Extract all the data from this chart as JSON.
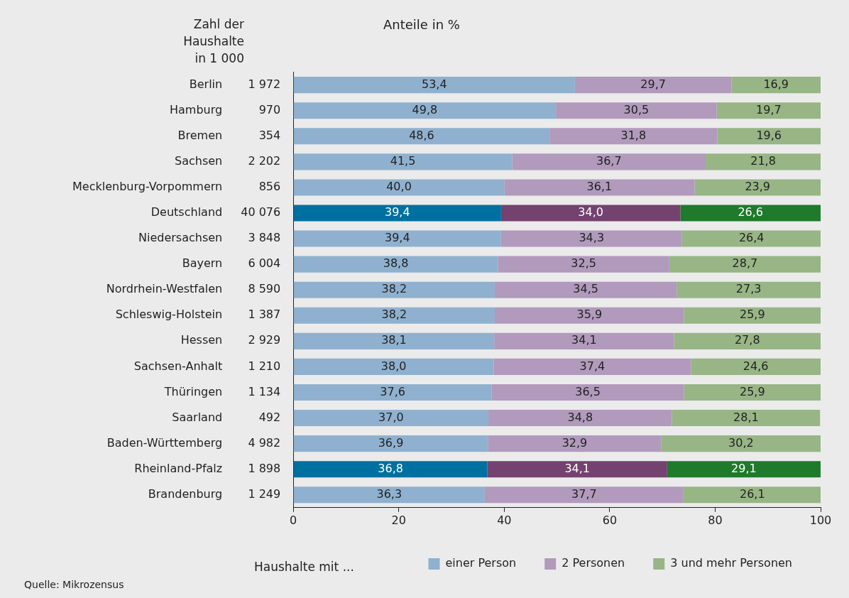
{
  "chart_data": {
    "type": "bar",
    "orientation": "horizontal",
    "stacked": true,
    "title": "Anteile in %",
    "legend_title": "Haushalte mit ...",
    "legend": "bottom",
    "grid": false,
    "categories": [
      "Berlin",
      "Hamburg",
      "Bremen",
      "Sachsen",
      "Mecklenburg-Vorpommern",
      "Deutschland",
      "Niedersachsen",
      "Bayern",
      "Nordrhein-Westfalen",
      "Schleswig-Holstein",
      "Hessen",
      "Sachsen-Anhalt",
      "Thüringen",
      "Saarland",
      "Baden-Württemberg",
      "Rheinland-Pfalz",
      "Brandenburg"
    ],
    "y2_categories": [
      "1 972",
      "970",
      "354",
      "2 202",
      "856",
      "40 076",
      "3 848",
      "6 004",
      "8 590",
      "1 387",
      "2 929",
      "1 210",
      "1 134",
      "492",
      "4 982",
      "1 898",
      "1 249"
    ],
    "xlim": [
      0,
      100
    ],
    "xticks": [
      0,
      20,
      40,
      60,
      80,
      100
    ],
    "series": [
      {
        "name": "einer Person",
        "color": "#8fb1cf",
        "colors": [
          "#8fb1cf",
          "#8fb1cf",
          "#8fb1cf",
          "#8fb1cf",
          "#8fb1cf",
          "#0070a0",
          "#8fb1cf",
          "#8fb1cf",
          "#8fb1cf",
          "#8fb1cf",
          "#8fb1cf",
          "#8fb1cf",
          "#8fb1cf",
          "#8fb1cf",
          "#8fb1cf",
          "#0070a0",
          "#8fb1cf"
        ],
        "values": [
          53.4,
          49.8,
          48.6,
          41.5,
          40.0,
          39.4,
          39.4,
          38.8,
          38.2,
          38.2,
          38.1,
          38.0,
          37.6,
          37.0,
          36.9,
          36.8,
          36.3
        ],
        "value_labels": [
          "53,4",
          "49,8",
          "48,6",
          "41,5",
          "40,0",
          "39,4",
          "39,4",
          "38,8",
          "38,2",
          "38,2",
          "38,1",
          "38,0",
          "37,6",
          "37,0",
          "36,9",
          "36,8",
          "36,3"
        ]
      },
      {
        "name": "2 Personen",
        "color": "#b19abc",
        "colors": [
          "#b19abc",
          "#b19abc",
          "#b19abc",
          "#b19abc",
          "#b19abc",
          "#74426f",
          "#b19abc",
          "#b19abc",
          "#b19abc",
          "#b19abc",
          "#b19abc",
          "#b19abc",
          "#b19abc",
          "#b19abc",
          "#b19abc",
          "#74426f",
          "#b19abc"
        ],
        "values": [
          29.7,
          30.5,
          31.8,
          36.7,
          36.1,
          34.0,
          34.3,
          32.5,
          34.5,
          35.9,
          34.1,
          37.4,
          36.5,
          34.8,
          32.9,
          34.1,
          37.7
        ],
        "value_labels": [
          "29,7",
          "30,5",
          "31,8",
          "36,7",
          "36,1",
          "34,0",
          "34,3",
          "32,5",
          "34,5",
          "35,9",
          "34,1",
          "37,4",
          "36,5",
          "34,8",
          "32,9",
          "34,1",
          "37,7"
        ]
      },
      {
        "name": "3 und mehr Personen",
        "color": "#98b585",
        "colors": [
          "#98b585",
          "#98b585",
          "#98b585",
          "#98b585",
          "#98b585",
          "#1f7a2c",
          "#98b585",
          "#98b585",
          "#98b585",
          "#98b585",
          "#98b585",
          "#98b585",
          "#98b585",
          "#98b585",
          "#98b585",
          "#1f7a2c",
          "#98b585"
        ],
        "values": [
          16.9,
          19.7,
          19.6,
          21.8,
          23.9,
          26.6,
          26.4,
          28.7,
          27.3,
          25.9,
          27.8,
          24.6,
          25.9,
          28.1,
          30.2,
          29.1,
          26.1
        ],
        "value_labels": [
          "16,9",
          "19,7",
          "19,6",
          "21,8",
          "23,9",
          "26,6",
          "26,4",
          "28,7",
          "27,3",
          "25,9",
          "27,8",
          "24,6",
          "25,9",
          "28,1",
          "30,2",
          "29,1",
          "26,1"
        ]
      }
    ],
    "annotations": [
      "Zahl der Haushalte in 1 000",
      "Quelle: Mikrozensus"
    ]
  }
}
